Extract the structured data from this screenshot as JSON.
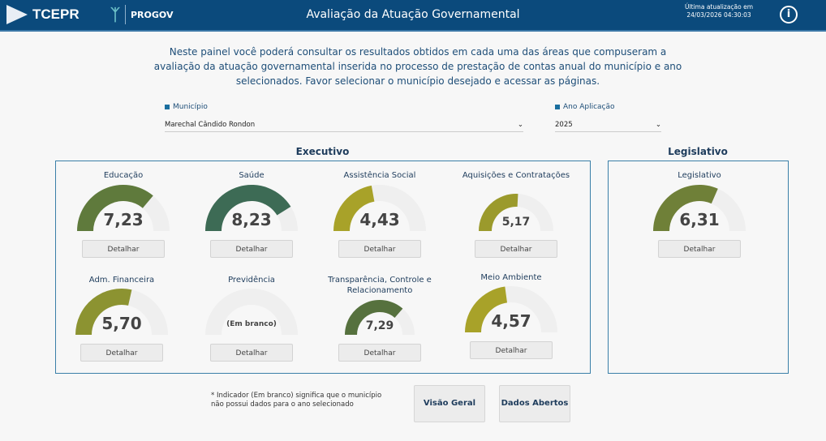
{
  "header": {
    "logo": "TCEPR",
    "progov": "PROGOV",
    "title": "Avaliação da Atuação Governamental",
    "update_label": "Última atualização em",
    "update_time": "24/03/2026 04:30:03",
    "info_icon": "i"
  },
  "intro": "Neste painel você poderá consultar os resultados obtidos em cada uma das áreas que compuseram a avaliação da atuação governamental inserida no processo de prestação de contas anual do município e ano selecionados. Favor selecionar o município desejado e acessar as páginas.",
  "filters": {
    "municipio_label": "Município",
    "municipio_value": "Marechal Cândido Rondon",
    "ano_label": "Ano Aplicação",
    "ano_value": "2025"
  },
  "sections": {
    "executivo": "Executivo",
    "legislativo": "Legislativo"
  },
  "button_label": "Detalhar",
  "gauges": [
    {
      "title": "Educação",
      "value": 7.23,
      "display": "7,23",
      "color": "#5f7a3c"
    },
    {
      "title": "Saúde",
      "value": 8.23,
      "display": "8,23",
      "color": "#3d6b55"
    },
    {
      "title": "Assistência Social",
      "value": 4.43,
      "display": "4,43",
      "color": "#a8a229"
    },
    {
      "title": "Aquisições e Contratações",
      "value": 5.17,
      "display": "5,17",
      "color": "#9b9a2c"
    },
    {
      "title": "Adm. Financeira",
      "value": 5.7,
      "display": "5,70",
      "color": "#8c9331"
    },
    {
      "title": "Previdência",
      "value": null,
      "display": "(Em branco)",
      "color": "#cccccc"
    },
    {
      "title": "Transparência, Controle e Relacionamento",
      "value": 7.29,
      "display": "7,29",
      "color": "#56713e"
    },
    {
      "title": "Meio Ambiente",
      "value": 4.57,
      "display": "4,57",
      "color": "#a8a229"
    },
    {
      "title": "Legislativo",
      "value": 6.31,
      "display": "6,31",
      "color": "#6f8038"
    }
  ],
  "gauge_max": 10,
  "footer": {
    "note_line1": "* Indicador (Em branco) significa que o município",
    "note_line2": "não possui dados para o ano selecionado",
    "visao_geral": "Visão Geral",
    "dados_abertos": "Dados Abertos"
  }
}
